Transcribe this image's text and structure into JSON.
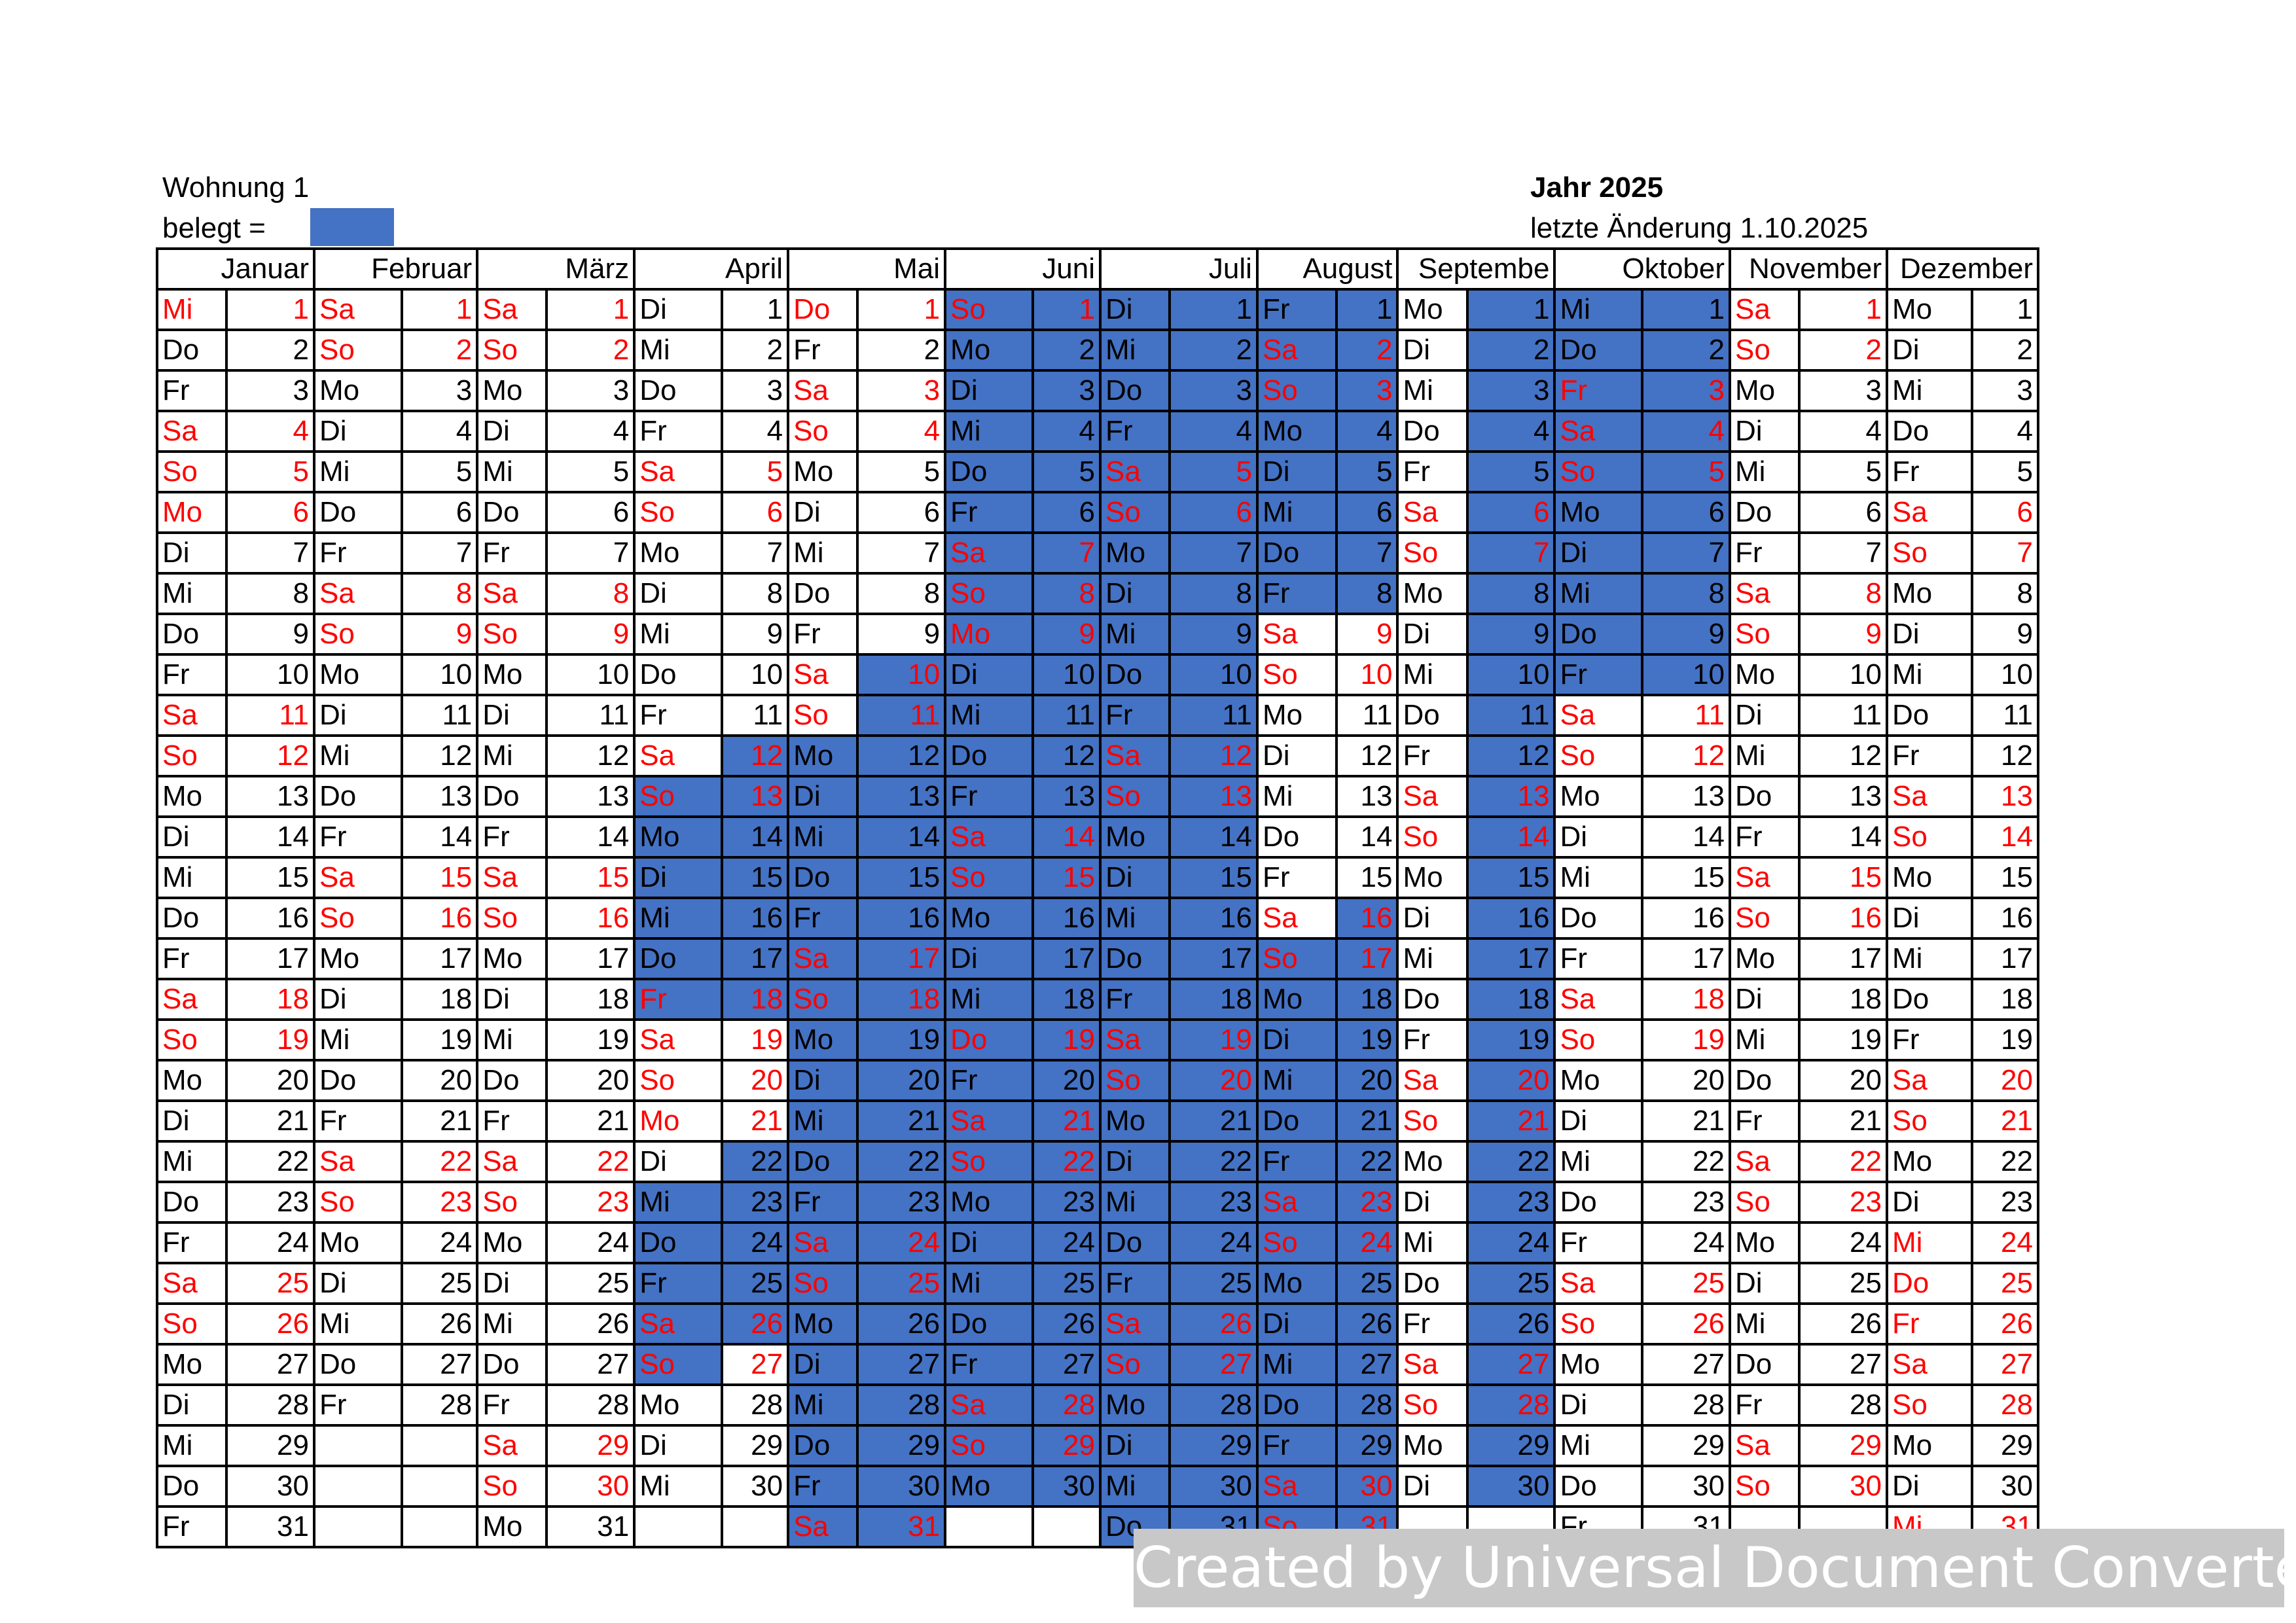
{
  "apartment": "Wohnung 1",
  "legend_label": "belegt =",
  "year_label": "Jahr 2025",
  "last_change": "letzte Änderung 1.10.2025",
  "colors": {
    "occupied": "#4472C4",
    "weekend": "#ff0000"
  },
  "months": [
    "Januar",
    "Februar",
    "März",
    "April",
    "Mai",
    "Juni",
    "Juli",
    "August",
    "Septembe",
    "Oktober",
    "November",
    "Dezember"
  ],
  "month_lengths": [
    31,
    28,
    31,
    30,
    31,
    30,
    31,
    31,
    30,
    31,
    30,
    31
  ],
  "first_weekday_index": [
    2,
    5,
    5,
    1,
    3,
    6,
    1,
    4,
    0,
    2,
    5,
    0
  ],
  "weekday_abbr": [
    "Mo",
    "Di",
    "Mi",
    "Do",
    "Fr",
    "Sa",
    "So"
  ],
  "red_weekdays": [
    "Sa",
    "So"
  ],
  "holidays_red": {
    "Januar": [
      1,
      6
    ],
    "April": [
      18,
      21
    ],
    "Mai": [
      1
    ],
    "Juni": [
      9,
      19
    ],
    "Oktober": [
      3
    ],
    "Dezember": [
      24,
      25,
      26,
      31
    ]
  },
  "occupied": {
    "April": {
      "day": [
        13,
        14,
        15,
        16,
        17,
        18,
        23,
        24,
        25,
        26,
        27
      ],
      "num": [
        12,
        13,
        14,
        15,
        16,
        17,
        18,
        22,
        23,
        24,
        25,
        26
      ]
    },
    "Mai": {
      "day": [
        12,
        13,
        14,
        15,
        16,
        17,
        18,
        19,
        20,
        21,
        22,
        23,
        24,
        25,
        26,
        27,
        28,
        29,
        30,
        31
      ],
      "num": [
        10,
        11,
        12,
        13,
        14,
        15,
        16,
        17,
        18,
        19,
        20,
        21,
        22,
        23,
        24,
        25,
        26,
        27,
        28,
        29,
        30,
        31
      ]
    },
    "Juni": {
      "day": [
        1,
        2,
        3,
        4,
        5,
        6,
        7,
        8,
        9,
        10,
        11,
        12,
        13,
        14,
        15,
        16,
        17,
        18,
        19,
        20,
        21,
        22,
        23,
        24,
        25,
        26,
        27,
        28,
        29,
        30
      ],
      "num": [
        1,
        2,
        3,
        4,
        5,
        6,
        7,
        8,
        9,
        10,
        11,
        12,
        13,
        14,
        15,
        16,
        17,
        18,
        19,
        20,
        21,
        22,
        23,
        24,
        25,
        26,
        27,
        28,
        29,
        30
      ]
    },
    "Juli": {
      "day": [
        1,
        2,
        3,
        4,
        5,
        6,
        7,
        8,
        9,
        10,
        11,
        12,
        13,
        14,
        15,
        16,
        17,
        18,
        19,
        20,
        21,
        22,
        23,
        24,
        25,
        26,
        27,
        28,
        29,
        30,
        31
      ],
      "num": [
        1,
        2,
        3,
        4,
        5,
        6,
        7,
        8,
        9,
        10,
        11,
        12,
        13,
        14,
        15,
        16,
        17,
        18,
        19,
        20,
        21,
        22,
        23,
        24,
        25,
        26,
        27,
        28,
        29,
        30,
        31
      ]
    },
    "August": {
      "day": [
        1,
        2,
        3,
        4,
        5,
        6,
        7,
        8,
        17,
        18,
        19,
        20,
        21,
        22,
        23,
        24,
        25,
        26,
        27,
        28,
        29,
        30,
        31
      ],
      "num": [
        1,
        2,
        3,
        4,
        5,
        6,
        7,
        8,
        16,
        17,
        18,
        19,
        20,
        21,
        22,
        23,
        24,
        25,
        26,
        27,
        28,
        29,
        30,
        31
      ]
    },
    "Septembe": {
      "day": [],
      "num": [
        1,
        2,
        3,
        4,
        5,
        6,
        7,
        8,
        9,
        10,
        11,
        12,
        13,
        14,
        15,
        16,
        17,
        18,
        19,
        20,
        21,
        22,
        23,
        24,
        25,
        26,
        27,
        28,
        29,
        30
      ]
    },
    "Oktober": {
      "day": [
        1,
        2,
        3,
        4,
        5,
        6,
        7,
        8,
        9,
        10
      ],
      "num": [
        1,
        2,
        3,
        4,
        5,
        6,
        7,
        8,
        9,
        10
      ]
    }
  },
  "watermark": "Created by Universal Document Converter"
}
